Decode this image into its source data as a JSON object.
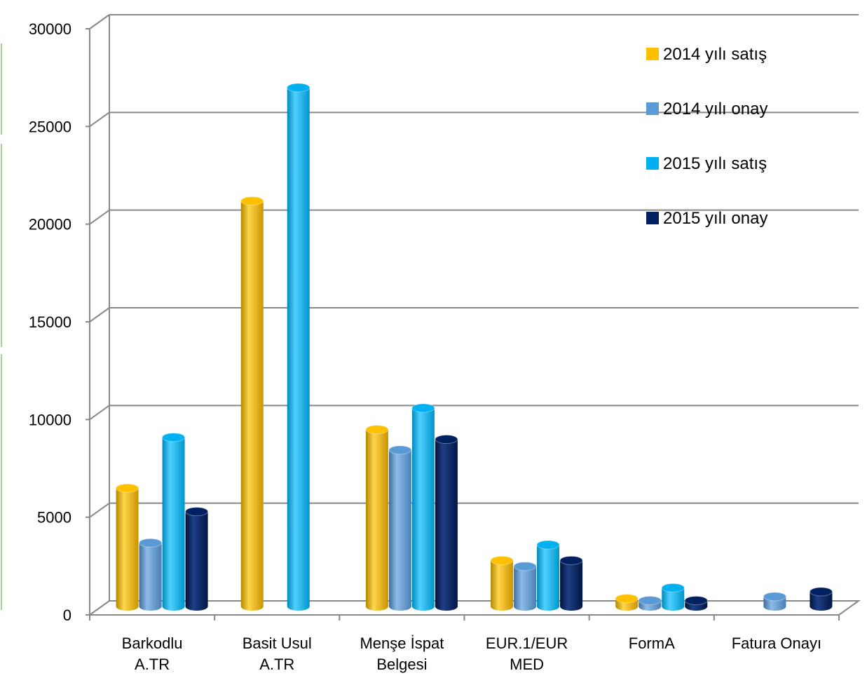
{
  "chart_data": {
    "type": "bar",
    "categories": [
      [
        "Barkodlu",
        "A.TR"
      ],
      [
        "Basit Usul",
        "A.TR"
      ],
      [
        "Menşe İspat",
        "Belgesi"
      ],
      [
        "EUR.1/EUR",
        "MED"
      ],
      [
        "FormA"
      ],
      [
        "Fatura Onayı"
      ]
    ],
    "series": [
      {
        "name": "2014 yılı satış",
        "color": "#FFC000",
        "values": [
          6200,
          20900,
          9200,
          2500,
          550,
          null
        ]
      },
      {
        "name": "2014 yılı onay",
        "color": "#5B9BD5",
        "values": [
          3400,
          null,
          8150,
          2200,
          450,
          650
        ]
      },
      {
        "name": "2015 yılı satış",
        "color": "#00B0F0",
        "values": [
          8800,
          26700,
          10300,
          3300,
          1100,
          null
        ]
      },
      {
        "name": "2015 yılı onay",
        "color": "#002060",
        "values": [
          5000,
          null,
          8700,
          2500,
          450,
          900
        ]
      }
    ],
    "ylim": [
      0,
      30000
    ],
    "yticks": [
      "0",
      "5000",
      "10000",
      "15000",
      "20000",
      "25000",
      "30000"
    ],
    "grid": true,
    "legend_position": "top-right"
  }
}
